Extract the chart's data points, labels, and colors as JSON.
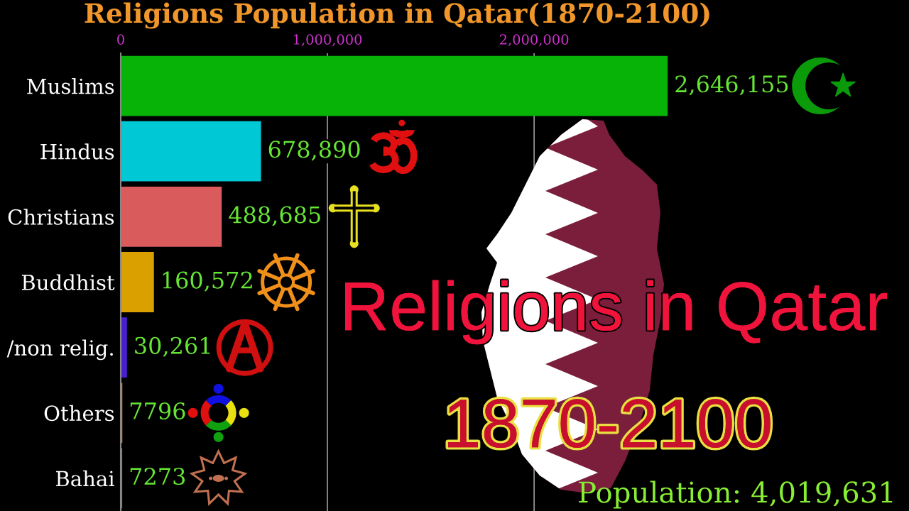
{
  "chart_data": {
    "type": "bar",
    "orientation": "horizontal",
    "title": "Religions Population in Qatar(1870-2100)",
    "categories": [
      "Muslims",
      "Hindus",
      "Christians",
      "Buddhist",
      "/non relig.",
      "Others",
      "Bahai"
    ],
    "values": [
      2646155,
      678890,
      488685,
      160572,
      30261,
      7796,
      7273
    ],
    "colors": [
      "#07b307",
      "#00c8d4",
      "#d95b5b",
      "#d9a000",
      "#4a1fd0",
      "#c8843c",
      "#6e8a5a"
    ],
    "value_labels": [
      "2,646,155",
      "678,890",
      "488,685",
      "160,572",
      "30,261",
      "7796",
      "7273"
    ],
    "xlim": [
      0,
      3800000
    ],
    "xticks": [
      0,
      {
        "value": 1000000,
        "label": "1,000,000"
      },
      {
        "value": 2000000,
        "label": "2,000,000"
      }
    ],
    "grid": "x",
    "annotations": [
      "Religions in Qatar",
      "1870-2100",
      "Population: 4,019,631"
    ]
  }
}
